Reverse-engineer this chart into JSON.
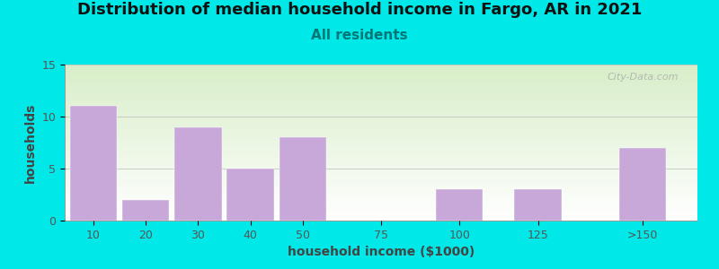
{
  "title": "Distribution of median household income in Fargo, AR in 2021",
  "subtitle": "All residents",
  "xlabel": "household income ($1000)",
  "ylabel": "households",
  "bar_labels": [
    "10",
    "20",
    "30",
    "40",
    "50",
    "75",
    "100",
    "125",
    ">150"
  ],
  "bar_values": [
    11,
    2,
    9,
    5,
    8,
    0,
    3,
    3,
    7
  ],
  "bar_color": "#c8a8d8",
  "ylim": [
    0,
    15
  ],
  "yticks": [
    0,
    5,
    10,
    15
  ],
  "background_color": "#00e8e8",
  "title_fontsize": 13,
  "subtitle_fontsize": 11,
  "subtitle_color": "#007777",
  "axis_label_fontsize": 10,
  "tick_label_fontsize": 9,
  "watermark": "City-Data.com",
  "bar_centers": [
    1,
    2,
    3,
    4,
    5,
    6.5,
    8,
    9.5,
    11.5
  ],
  "bar_width": 0.9,
  "x_tick_positions": [
    1,
    2,
    3,
    4,
    5,
    6.5,
    8,
    9.5,
    11.5
  ],
  "xlim": [
    0.45,
    12.55
  ]
}
